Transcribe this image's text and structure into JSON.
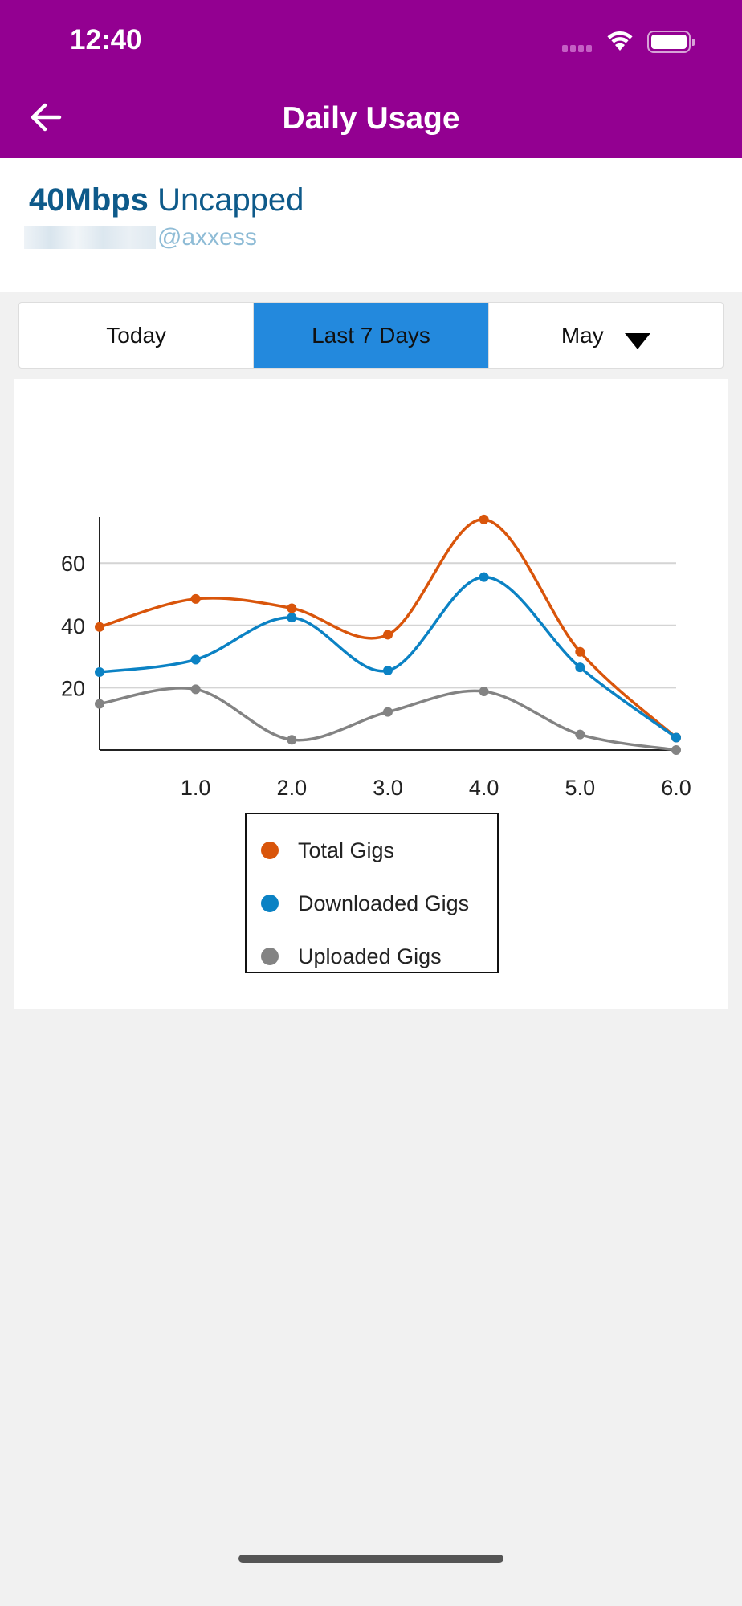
{
  "status_bar": {
    "time": "12:40"
  },
  "header": {
    "title": "Daily Usage",
    "back_icon": "arrow-left-icon",
    "bg": "#930091"
  },
  "plan": {
    "speed": "40Mbps",
    "type": "Uncapped",
    "email_suffix": "@axxess"
  },
  "tabs": [
    {
      "label": "Today",
      "active": false
    },
    {
      "label": "Last 7 Days",
      "active": true
    },
    {
      "label": "May",
      "active": false
    }
  ],
  "chart_data": {
    "type": "line",
    "x": [
      0,
      1,
      2,
      3,
      4,
      5,
      6
    ],
    "x_tick_labels": [
      "1.0",
      "2.0",
      "3.0",
      "4.0",
      "5.0",
      "6.0"
    ],
    "y_tick_labels": [
      "20",
      "40",
      "60"
    ],
    "y_ticks": [
      20,
      40,
      60
    ],
    "ylim": [
      0,
      75
    ],
    "xlim": [
      0,
      6
    ],
    "grid": true,
    "legend_placement": "bottom",
    "series": [
      {
        "name": "Total Gigs",
        "color": "#d9550b",
        "values": [
          39.5,
          48.5,
          45.5,
          37,
          74,
          31.5,
          4
        ]
      },
      {
        "name": "Downloaded Gigs",
        "color": "#0b82c4",
        "values": [
          25,
          29,
          42.5,
          25.5,
          55.5,
          26.5,
          4
        ]
      },
      {
        "name": "Uploaded Gigs",
        "color": "#838383",
        "values": [
          14.8,
          19.5,
          3.3,
          12.2,
          18.8,
          5,
          0
        ]
      }
    ]
  }
}
